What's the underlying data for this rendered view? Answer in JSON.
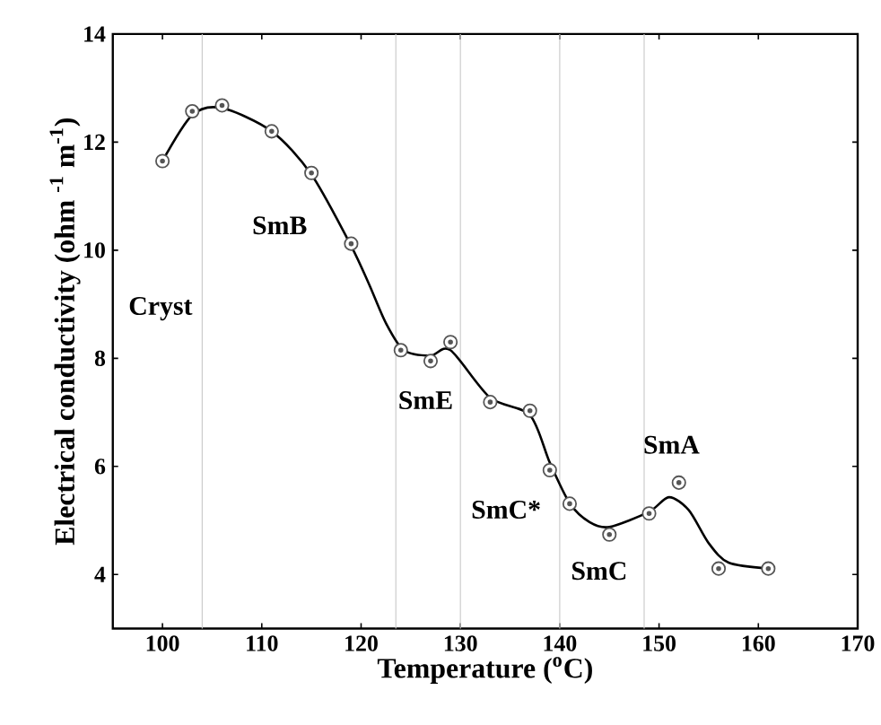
{
  "chart_data": {
    "type": "scatter",
    "xlabel": "Temperature ($^{o}$C)",
    "ylabel": "Electrical conductivity (ohm $^{-1}$ m$^{-1}$)",
    "xlim": [
      95,
      170
    ],
    "xticks": [
      100,
      110,
      120,
      130,
      140,
      150,
      160,
      170
    ],
    "ylim": [
      3,
      14
    ],
    "yticks": [
      4,
      6,
      8,
      10,
      12,
      14
    ],
    "grid": false,
    "series": [
      {
        "marker": "circle",
        "color": "#555555",
        "x": [
          100,
          103,
          106,
          111,
          115,
          119,
          124,
          127,
          129,
          133,
          137,
          139,
          141,
          145,
          149,
          152,
          156,
          161
        ],
        "values": [
          11.65,
          12.57,
          12.68,
          12.2,
          11.43,
          10.12,
          8.15,
          7.95,
          8.3,
          7.19,
          7.03,
          5.93,
          5.31,
          4.74,
          5.13,
          5.7,
          4.11,
          4.11
        ]
      },
      {
        "type": "line",
        "marker": "none",
        "line_style": "solid",
        "color": "#000000",
        "x": [
          100,
          103,
          106,
          111,
          115,
          119,
          120.8,
          122.5,
          124.3,
          127,
          129,
          133,
          137,
          139,
          141,
          143,
          145,
          149,
          151,
          153,
          155,
          157,
          161
        ],
        "values": [
          11.65,
          12.5,
          12.63,
          12.2,
          11.4,
          10.08,
          9.37,
          8.65,
          8.15,
          8.05,
          8.15,
          7.27,
          6.95,
          6.07,
          5.32,
          4.97,
          4.88,
          5.16,
          5.43,
          5.19,
          4.58,
          4.22,
          4.11
        ]
      }
    ],
    "ref_lines": [
      {
        "axis": "x",
        "value": 104,
        "color": "#cccccc"
      },
      {
        "axis": "x",
        "value": 123.5,
        "color": "#cccccc"
      },
      {
        "axis": "x",
        "value": 130,
        "color": "#cccccc"
      },
      {
        "axis": "x",
        "value": 140,
        "color": "#cccccc"
      },
      {
        "axis": "x",
        "value": 148.5,
        "color": "#cccccc"
      }
    ],
    "annotations": [
      "Cryst",
      "SmB",
      "SmE",
      "SmC*",
      "SmC",
      "SmA"
    ]
  }
}
